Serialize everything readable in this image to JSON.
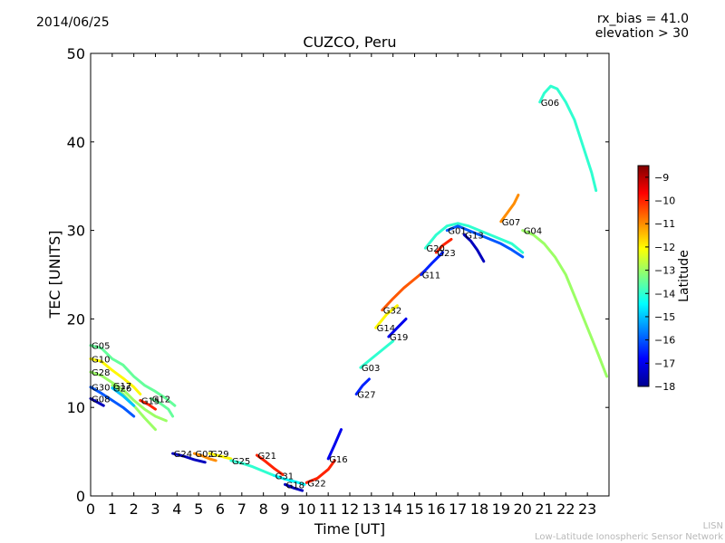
{
  "header": {
    "date": "2014/06/25",
    "rx_bias": "rx_bias = 41.0",
    "elevation": "elevation > 30"
  },
  "footer": {
    "line1": "LISN",
    "line2": "Low-Latitude Ionospheric Sensor Network"
  },
  "chart_data": {
    "type": "scatter",
    "title": "CUZCO, Peru",
    "xlabel": "Time [UT]",
    "ylabel": "TEC [UNITS]",
    "xlim": [
      0,
      24
    ],
    "ylim": [
      0,
      50
    ],
    "xticks": [
      "0",
      "1",
      "2",
      "3",
      "4",
      "5",
      "6",
      "7",
      "8",
      "9",
      "10",
      "11",
      "12",
      "13",
      "14",
      "15",
      "16",
      "17",
      "18",
      "19",
      "20",
      "21",
      "22",
      "23"
    ],
    "yticks": [
      "0",
      "10",
      "20",
      "30",
      "40",
      "50"
    ],
    "grid": false,
    "colorbar": {
      "label": "Latitude",
      "min": -18,
      "max": -8.5,
      "ticks": [
        "−9",
        "−10",
        "−11",
        "−12",
        "−13",
        "−14",
        "−15",
        "−16",
        "−17",
        "−18"
      ],
      "tick_values": [
        -9,
        -10,
        -11,
        -12,
        -13,
        -14,
        -15,
        -16,
        -17,
        -18
      ],
      "colormap": [
        "#00008f",
        "#0000ff",
        "#0080ff",
        "#00ffff",
        "#80ff80",
        "#ffff00",
        "#ff8000",
        "#ff0000",
        "#800000"
      ]
    },
    "series": [
      {
        "name": "G05",
        "lat": -13.5,
        "x": [
          0,
          0.5,
          1,
          1.5,
          2,
          2.5,
          3,
          3.5,
          3.9
        ],
        "y": [
          17,
          16.7,
          15.5,
          14.8,
          13.5,
          12.5,
          11.8,
          11,
          10.2
        ]
      },
      {
        "name": "G10",
        "lat": -12,
        "x": [
          0,
          0.5,
          1,
          1.5,
          2,
          2.3
        ],
        "y": [
          15.5,
          15.2,
          14.2,
          13.3,
          12.3,
          11.5
        ]
      },
      {
        "name": "G28",
        "lat": -13,
        "x": [
          0,
          0.5,
          1,
          1.5,
          2,
          2.5,
          3,
          3.5
        ],
        "y": [
          14,
          13.6,
          12.8,
          12,
          10.8,
          9.8,
          9,
          8.5
        ]
      },
      {
        "name": "G30",
        "lat": -16,
        "x": [
          0,
          0.5,
          1,
          1.5,
          2
        ],
        "y": [
          12.3,
          11.6,
          10.8,
          10,
          9
        ]
      },
      {
        "name": "G08",
        "lat": -17.5,
        "x": [
          0,
          0.3,
          0.6
        ],
        "y": [
          11,
          10.6,
          10.2
        ]
      },
      {
        "name": "G17",
        "lat": -13,
        "x": [
          1,
          1.5,
          2,
          2.5,
          3
        ],
        "y": [
          12.5,
          11.5,
          10.2,
          8.8,
          7.5
        ]
      },
      {
        "name": "G26",
        "lat": -15,
        "x": [
          1,
          1.5,
          2
        ],
        "y": [
          12.2,
          11.3,
          10.2
        ]
      },
      {
        "name": "G12",
        "lat": -13.5,
        "x": [
          2.8,
          3.2,
          3.6,
          3.8
        ],
        "y": [
          11,
          10.5,
          9.8,
          9
        ]
      },
      {
        "name": "G15",
        "lat": -10,
        "x": [
          2.3,
          2.7,
          3
        ],
        "y": [
          10.8,
          10.3,
          9.8
        ]
      },
      {
        "name": "G24",
        "lat": -17.5,
        "x": [
          3.8,
          4.3,
          4.8,
          5.3
        ],
        "y": [
          4.8,
          4.5,
          4.1,
          3.8
        ]
      },
      {
        "name": "G02",
        "lat": -11,
        "x": [
          4.8,
          5.2,
          5.5,
          5.8
        ],
        "y": [
          4.8,
          4.5,
          4.2,
          4
        ]
      },
      {
        "name": "G29",
        "lat": -12,
        "x": [
          5.5,
          6,
          6.5
        ],
        "y": [
          4.8,
          4.5,
          4.2
        ]
      },
      {
        "name": "G25",
        "lat": -14,
        "x": [
          6.5,
          7,
          7.5,
          8,
          8.5
        ],
        "y": [
          4,
          3.7,
          3.3,
          2.8,
          2.3
        ]
      },
      {
        "name": "G21",
        "lat": -10,
        "x": [
          7.7,
          8.1,
          8.5,
          8.9
        ],
        "y": [
          4.6,
          3.9,
          3.1,
          2.4
        ]
      },
      {
        "name": "G31",
        "lat": -14.5,
        "x": [
          8.5,
          9,
          9.5,
          9.9
        ],
        "y": [
          2.3,
          1.9,
          1.6,
          1.3
        ]
      },
      {
        "name": "G18",
        "lat": -17.5,
        "x": [
          9,
          9.4,
          9.8
        ],
        "y": [
          1.3,
          0.9,
          0.6
        ]
      },
      {
        "name": "G22",
        "lat": -10,
        "x": [
          10,
          10.5,
          11,
          11.3
        ],
        "y": [
          1.5,
          2,
          3,
          4
        ]
      },
      {
        "name": "G16",
        "lat": -17,
        "x": [
          11,
          11.3,
          11.6
        ],
        "y": [
          4.2,
          5.8,
          7.5
        ]
      },
      {
        "name": "G27",
        "lat": -16.5,
        "x": [
          12.3,
          12.6,
          12.9
        ],
        "y": [
          11.5,
          12.5,
          13.2
        ]
      },
      {
        "name": "G03",
        "lat": -14,
        "x": [
          12.5,
          13,
          13.5,
          14
        ],
        "y": [
          14.5,
          15.5,
          16.5,
          17.5
        ]
      },
      {
        "name": "G14",
        "lat": -12,
        "x": [
          13.2,
          13.7,
          14.2
        ],
        "y": [
          19,
          20.5,
          21.5
        ]
      },
      {
        "name": "G19",
        "lat": -17,
        "x": [
          13.8,
          14.2,
          14.6
        ],
        "y": [
          18,
          19,
          20
        ]
      },
      {
        "name": "G32",
        "lat": -10.5,
        "x": [
          13.5,
          14,
          14.5,
          15,
          15.5
        ],
        "y": [
          21,
          22.3,
          23.5,
          24.5,
          25.5
        ]
      },
      {
        "name": "G11",
        "lat": -16.5,
        "x": [
          15.3,
          15.8,
          16.3
        ],
        "y": [
          25,
          26.3,
          27.5
        ]
      },
      {
        "name": "G23",
        "lat": -10,
        "x": [
          16,
          16.3,
          16.7
        ],
        "y": [
          27.5,
          28.3,
          29
        ]
      },
      {
        "name": "G20",
        "lat": -14,
        "x": [
          15.5,
          16,
          16.5,
          17,
          17.5,
          18,
          18.5,
          19,
          19.5,
          20
        ],
        "y": [
          28,
          29.5,
          30.5,
          30.8,
          30.5,
          30,
          29.5,
          29,
          28.5,
          27.5
        ]
      },
      {
        "name": "G01",
        "lat": -16,
        "x": [
          16.5,
          17,
          17.5,
          18,
          18.5,
          19,
          19.5,
          20
        ],
        "y": [
          30,
          30.5,
          30,
          29.5,
          29,
          28.5,
          27.8,
          27
        ]
      },
      {
        "name": "G13",
        "lat": -17.5,
        "x": [
          17.3,
          17.6,
          17.9,
          18.2
        ],
        "y": [
          29.5,
          28.8,
          27.8,
          26.5
        ]
      },
      {
        "name": "G07",
        "lat": -11,
        "x": [
          19,
          19.3,
          19.6,
          19.8
        ],
        "y": [
          31,
          32,
          33,
          34
        ]
      },
      {
        "name": "G04",
        "lat": -13,
        "x": [
          20,
          20.5,
          21,
          21.5,
          22,
          22.5,
          23,
          23.5,
          23.9
        ],
        "y": [
          30,
          29.5,
          28.5,
          27,
          25,
          22,
          19,
          16,
          13.5
        ]
      },
      {
        "name": "G06",
        "lat": -14,
        "x": [
          20.8,
          21,
          21.3,
          21.6,
          22,
          22.4,
          22.8,
          23.2,
          23.4
        ],
        "y": [
          44.5,
          45.5,
          46.3,
          46,
          44.5,
          42.5,
          39.5,
          36.5,
          34.5
        ]
      }
    ]
  }
}
